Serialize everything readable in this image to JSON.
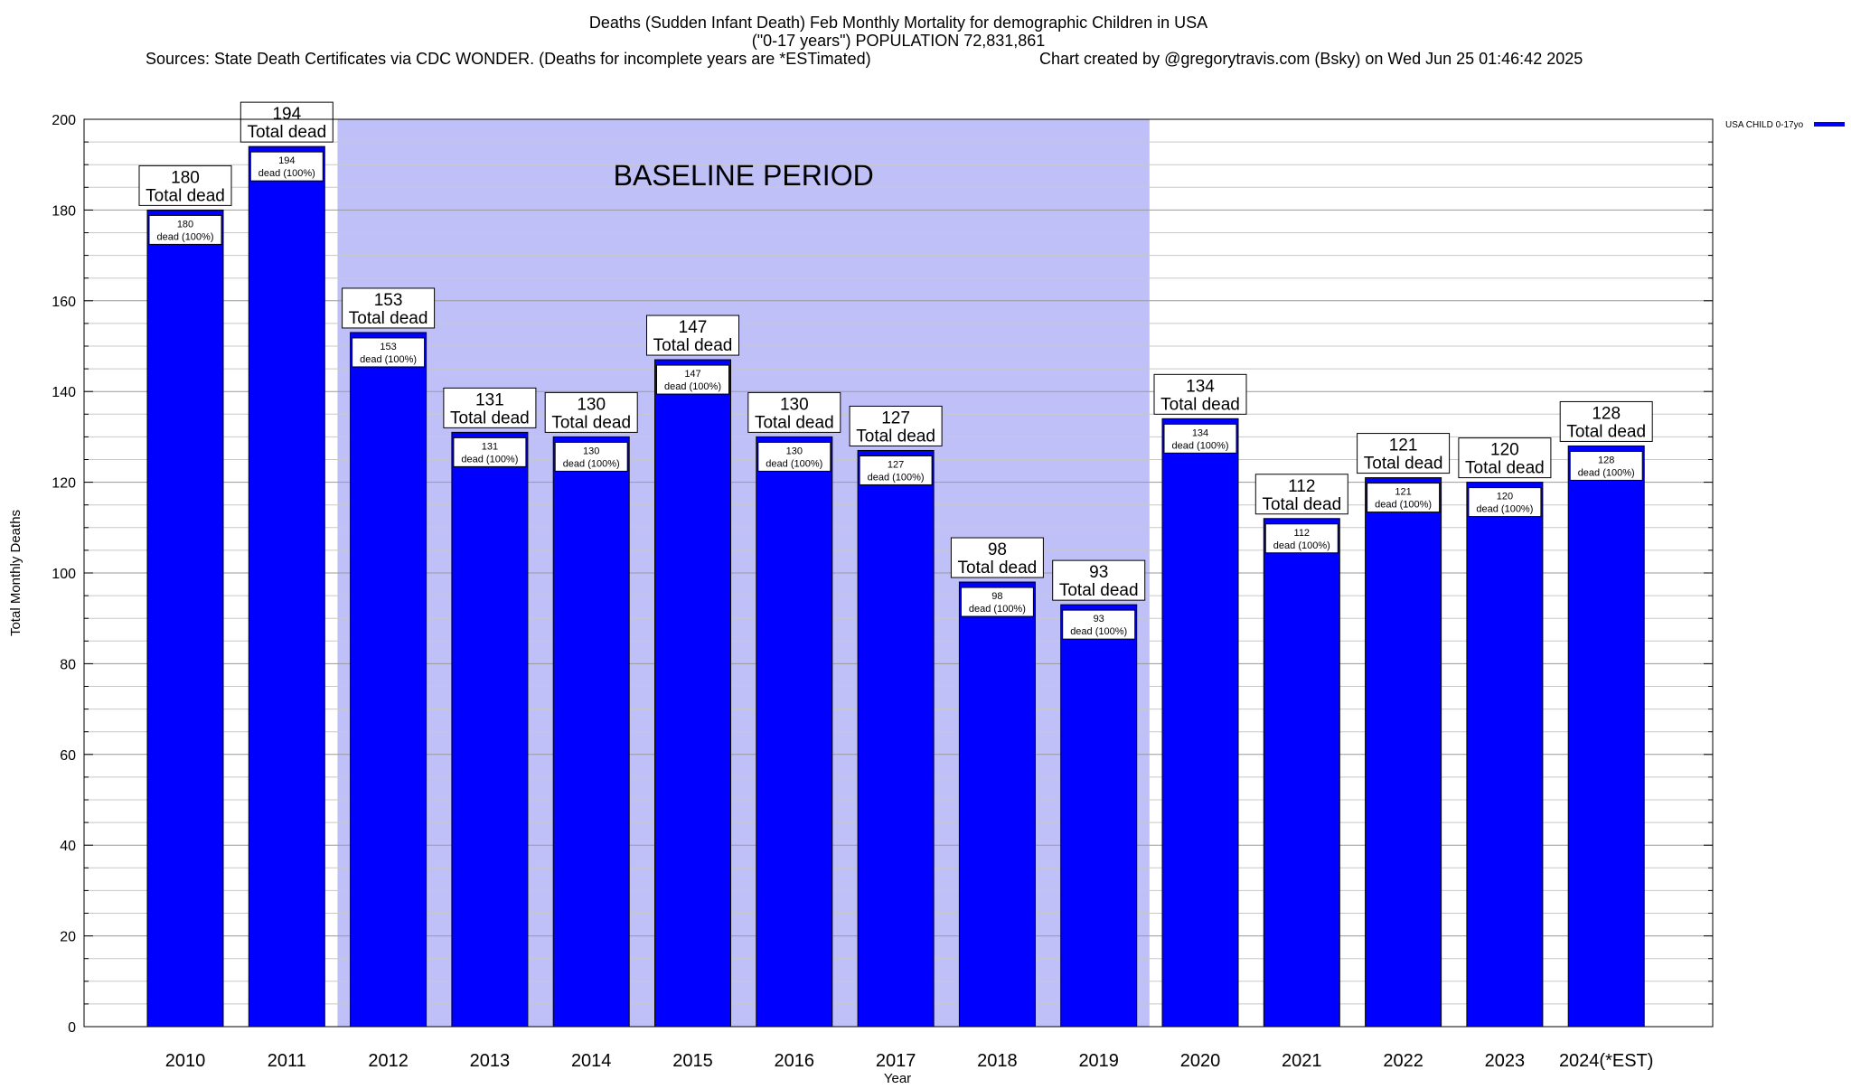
{
  "chart_data": {
    "type": "bar",
    "title_lines": [
      "Deaths (Sudden Infant Death) Feb Monthly Mortality for demographic Children in USA",
      "(\"0-17 years\") POPULATION 72,831,861"
    ],
    "sources": "Sources: State Death Certificates via CDC WONDER. (Deaths for incomplete years are *ESTimated)",
    "credit": "Chart created by @gregorytravis.com (Bsky) on Wed Jun 25 01:46:42 2025",
    "xlabel": "Year",
    "ylabel": "Total Monthly Deaths",
    "ylim": [
      0,
      200
    ],
    "y_ticks": [
      0,
      20,
      40,
      60,
      80,
      100,
      120,
      140,
      160,
      180,
      200
    ],
    "grid": true,
    "legend": {
      "placement": "top-right",
      "entries": [
        {
          "name": "USA CHILD 0-17yo",
          "color": "#0000ff"
        }
      ]
    },
    "categories": [
      "2010",
      "2011",
      "2012",
      "2013",
      "2014",
      "2015",
      "2016",
      "2017",
      "2018",
      "2019",
      "2020",
      "2021",
      "2022",
      "2023",
      "2024(*EST)"
    ],
    "series": [
      {
        "name": "USA CHILD 0-17yo",
        "color": "#0000ff",
        "values": [
          180,
          194,
          153,
          131,
          130,
          147,
          130,
          127,
          98,
          93,
          134,
          112,
          121,
          120,
          128
        ]
      }
    ],
    "total_label_text": "Total dead",
    "inner_label_text": "dead (100%)",
    "baseline_period": {
      "label": "BASELINE PERIOD",
      "from": "2012",
      "to": "2019",
      "color": "#c0c0f8"
    }
  }
}
